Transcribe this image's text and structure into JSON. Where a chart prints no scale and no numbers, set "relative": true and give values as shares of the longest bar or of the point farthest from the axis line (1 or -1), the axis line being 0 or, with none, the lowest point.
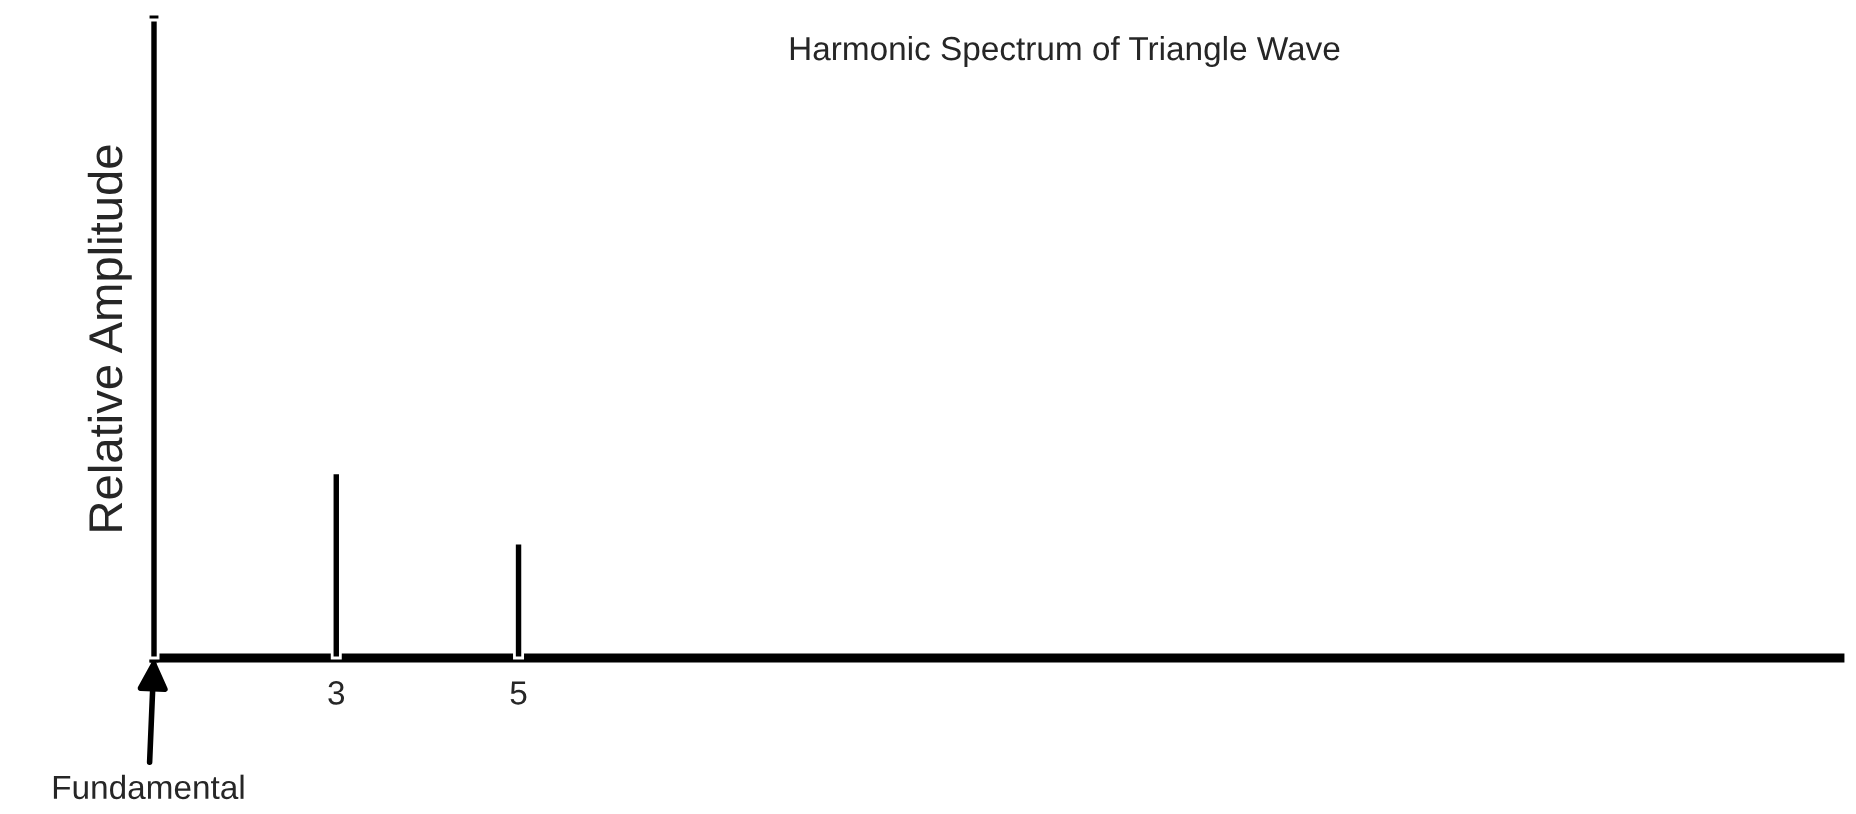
{
  "chart_data": {
    "type": "bar",
    "title": "Harmonic Spectrum of Triangle Wave",
    "ylabel": "Relative Amplitude",
    "relative": true,
    "x": [
      1,
      3,
      5
    ],
    "values": [
      1,
      0.29,
      0.18
    ],
    "color": "#000000",
    "xlim": [
      1,
      19.5
    ],
    "xticks": [
      3,
      5
    ],
    "grid": false,
    "annotations": [
      {
        "text": "Fundamental",
        "x": 1,
        "y": 0
      }
    ]
  }
}
